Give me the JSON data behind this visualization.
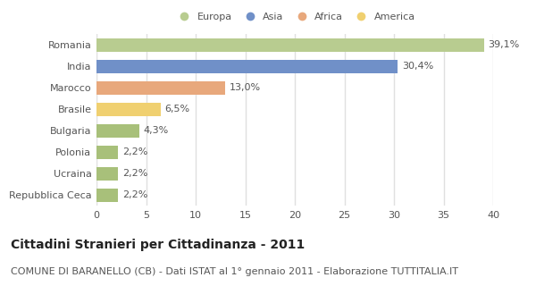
{
  "categories": [
    "Repubblica Ceca",
    "Ucraina",
    "Polonia",
    "Bulgaria",
    "Brasile",
    "Marocco",
    "India",
    "Romania"
  ],
  "values": [
    2.2,
    2.2,
    2.2,
    4.3,
    6.5,
    13.0,
    30.4,
    39.1
  ],
  "labels": [
    "2,2%",
    "2,2%",
    "2,2%",
    "4,3%",
    "6,5%",
    "13,0%",
    "30,4%",
    "39,1%"
  ],
  "colors": [
    "#a8c07a",
    "#a8c07a",
    "#a8c07a",
    "#a8c07a",
    "#f0d070",
    "#e8a87c",
    "#7090c8",
    "#b8cc90"
  ],
  "legend_labels": [
    "Europa",
    "Asia",
    "Africa",
    "America"
  ],
  "legend_colors": [
    "#b8cc90",
    "#7090c8",
    "#e8a87c",
    "#f0d070"
  ],
  "xlim": [
    0,
    40
  ],
  "xticks": [
    0,
    5,
    10,
    15,
    20,
    25,
    30,
    35,
    40
  ],
  "title": "Cittadini Stranieri per Cittadinanza - 2011",
  "subtitle": "COMUNE DI BARANELLO (CB) - Dati ISTAT al 1° gennaio 2011 - Elaborazione TUTTITALIA.IT",
  "bg_color": "#ffffff",
  "bar_height": 0.65,
  "title_fontsize": 10,
  "subtitle_fontsize": 8,
  "label_fontsize": 8,
  "tick_fontsize": 8,
  "grid_color": "#e0e0e0"
}
